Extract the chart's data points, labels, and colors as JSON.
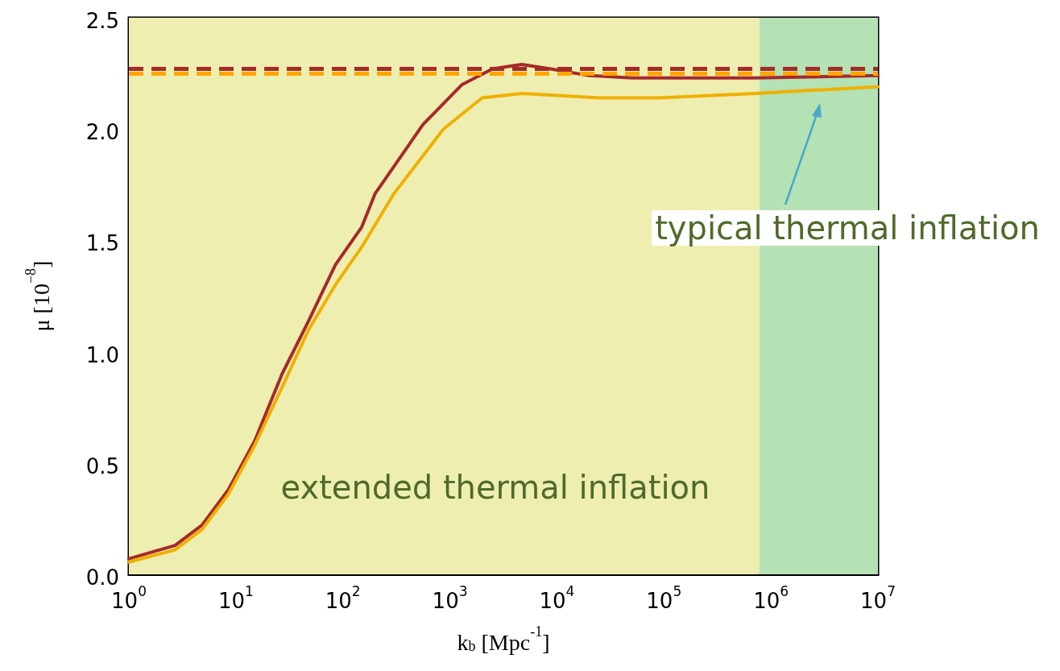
{
  "chart_data": {
    "type": "line",
    "xlabel": "k$_{b}$ [Mpc$^{-1}$]",
    "ylabel": "μ [10$^{−8}$]",
    "log": "x",
    "xlim": [
      1,
      10000000
    ],
    "xticks": [
      {
        "value": 1,
        "label": "10$^{0}$"
      },
      {
        "value": 10,
        "label": "10$^{1}$"
      },
      {
        "value": 100,
        "label": "10$^{2}$"
      },
      {
        "value": 1000,
        "label": "10$^{3}$"
      },
      {
        "value": 10000,
        "label": "10$^{4}$"
      },
      {
        "value": 100000,
        "label": "10$^{5}$"
      },
      {
        "value": 1000000,
        "label": "10$^{6}$"
      },
      {
        "value": 10000000,
        "label": "10$^{7}$"
      }
    ],
    "ylim": [
      0,
      2.5
    ],
    "yticks": [
      {
        "value": 0,
        "label": "0.0"
      },
      {
        "value": 0.5,
        "label": "0.5"
      },
      {
        "value": 1,
        "label": "1.0"
      },
      {
        "value": 1.5,
        "label": "1.5"
      },
      {
        "value": 2,
        "label": "2.0"
      },
      {
        "value": 2.5,
        "label": "2.5"
      }
    ],
    "grid": false,
    "marker": "none",
    "line_style": "solid",
    "series": [
      {
        "color": "#a52a2a",
        "x": [
          1,
          2.7,
          4.8,
          8.5,
          15,
          27,
          48,
          85,
          150,
          200,
          560,
          1300,
          2500,
          4700,
          8700,
          20000,
          51000,
          720000,
          10000000
        ],
        "values": [
          0.07,
          0.13,
          0.22,
          0.38,
          0.6,
          0.9,
          1.14,
          1.39,
          1.56,
          1.71,
          2.02,
          2.2,
          2.27,
          2.29,
          2.27,
          2.24,
          2.23,
          2.23,
          2.24
        ]
      },
      {
        "color": "#f0b000",
        "x": [
          1,
          2.7,
          4.8,
          8.5,
          15,
          27,
          48,
          85,
          150,
          300,
          870,
          2000,
          4700,
          11000,
          25000,
          89000,
          720000,
          10000000
        ],
        "values": [
          0.055,
          0.11,
          0.2,
          0.36,
          0.58,
          0.84,
          1.1,
          1.3,
          1.47,
          1.71,
          2.0,
          2.14,
          2.16,
          2.15,
          2.14,
          2.14,
          2.16,
          2.19
        ]
      }
    ],
    "ref_lines": [
      {
        "axis": "y",
        "value": 2.27,
        "color": "#a52a2a",
        "line_style": "dashed"
      },
      {
        "axis": "y",
        "value": 2.25,
        "color": "#ffa500",
        "line_style": "dashed"
      }
    ],
    "bands": [
      {
        "axis": "x",
        "from": 1,
        "to": 780000,
        "label": "extended thermal inflation",
        "color": "#eeeeb0"
      },
      {
        "axis": "x",
        "from": 780000,
        "to": 10000000,
        "label": "typical thermal inflation",
        "color": "#b4e2b4"
      }
    ]
  }
}
